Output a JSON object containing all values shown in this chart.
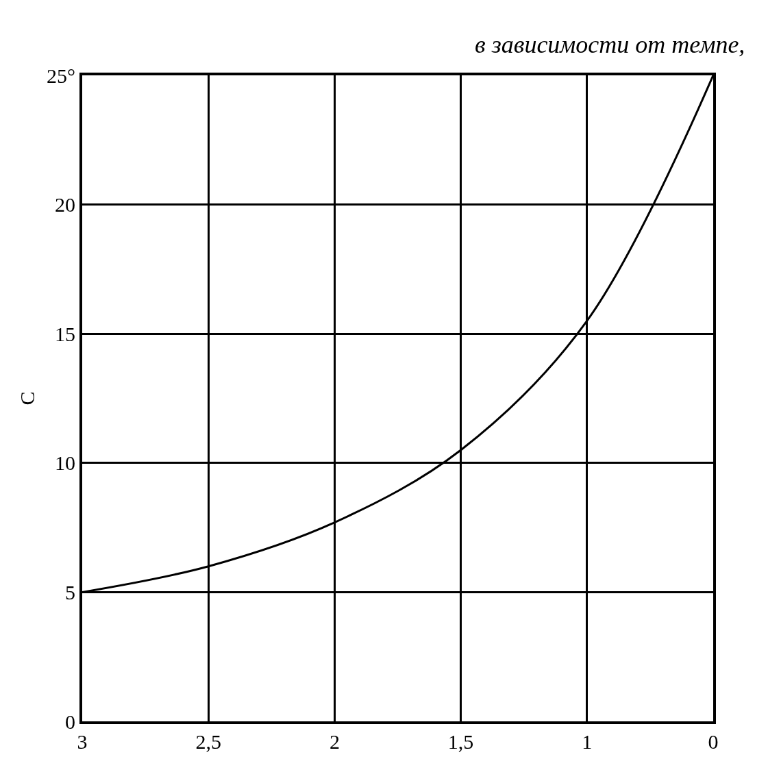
{
  "chart_data": {
    "type": "line",
    "title": "в зависимости от темпе,",
    "ylabel": "С",
    "categories": [
      "3",
      "2,5",
      "2",
      "1,5",
      "1",
      "0"
    ],
    "series": [
      {
        "color": "#000000",
        "values": [
          5,
          6,
          7.7,
          10.5,
          15.5,
          25
        ]
      }
    ],
    "ylim": [
      0,
      25
    ],
    "yticks": [
      0,
      5,
      10,
      15,
      20,
      {
        "value": 25,
        "label": "25°"
      }
    ],
    "grid": true,
    "marker": "none",
    "line_style": "solid"
  }
}
